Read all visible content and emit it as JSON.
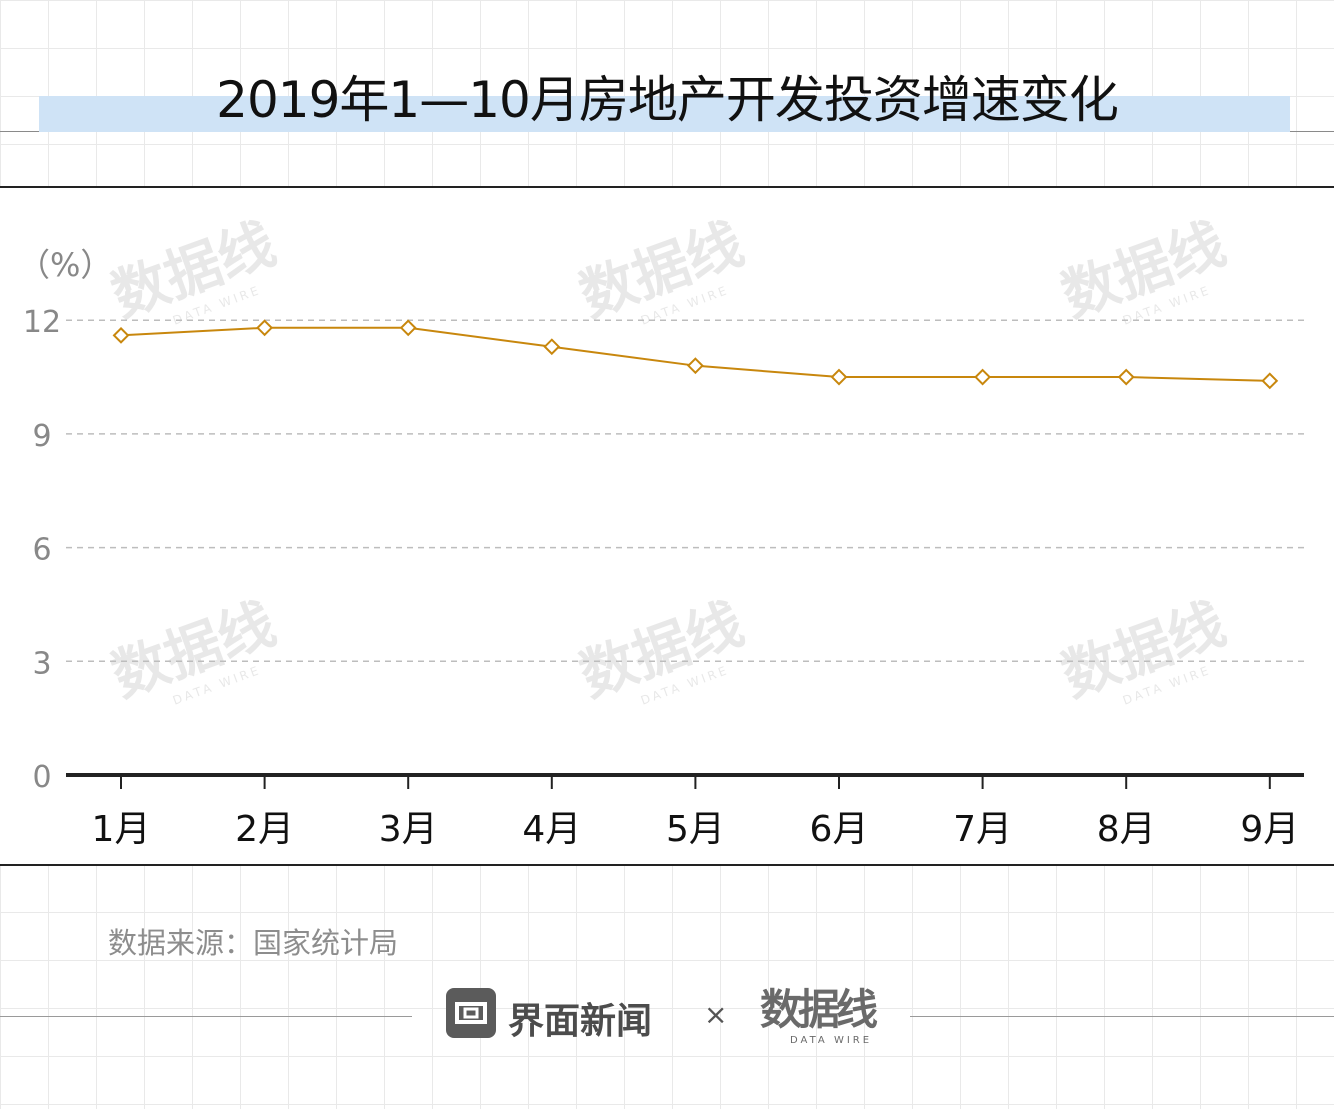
{
  "header": {
    "title": "2019年1—10月房地产开发投资增速变化"
  },
  "chart_data": {
    "type": "line",
    "title": "2019年1—10月房地产开发投资增速变化",
    "unit_label": "（%）",
    "categories": [
      "1月",
      "2月",
      "3月",
      "4月",
      "5月",
      "6月",
      "7月",
      "8月",
      "9月"
    ],
    "series": [
      {
        "values": [
          11.6,
          11.8,
          11.8,
          11.3,
          10.8,
          10.5,
          10.5,
          10.5,
          10.4
        ]
      }
    ],
    "yticks": [
      0,
      3,
      6,
      9,
      12
    ],
    "ylim": [
      0,
      12.5
    ],
    "grid": true,
    "legend": "none",
    "line_color": "#c8870d",
    "watermark_text": "数据线",
    "watermark_sub": "DATA WIRE"
  },
  "footer": {
    "source": "数据来源：国家统计局",
    "brand": "界面新闻",
    "times": "×",
    "partner": "数据线",
    "partner_sub": "DATA WIRE"
  },
  "colors": {
    "accent": "#c8870d",
    "title_band": "#cfe3f6",
    "axis": "#222222",
    "gridline": "#bdbdbd"
  },
  "icons": {
    "brand": "jiemian-logo-icon"
  }
}
